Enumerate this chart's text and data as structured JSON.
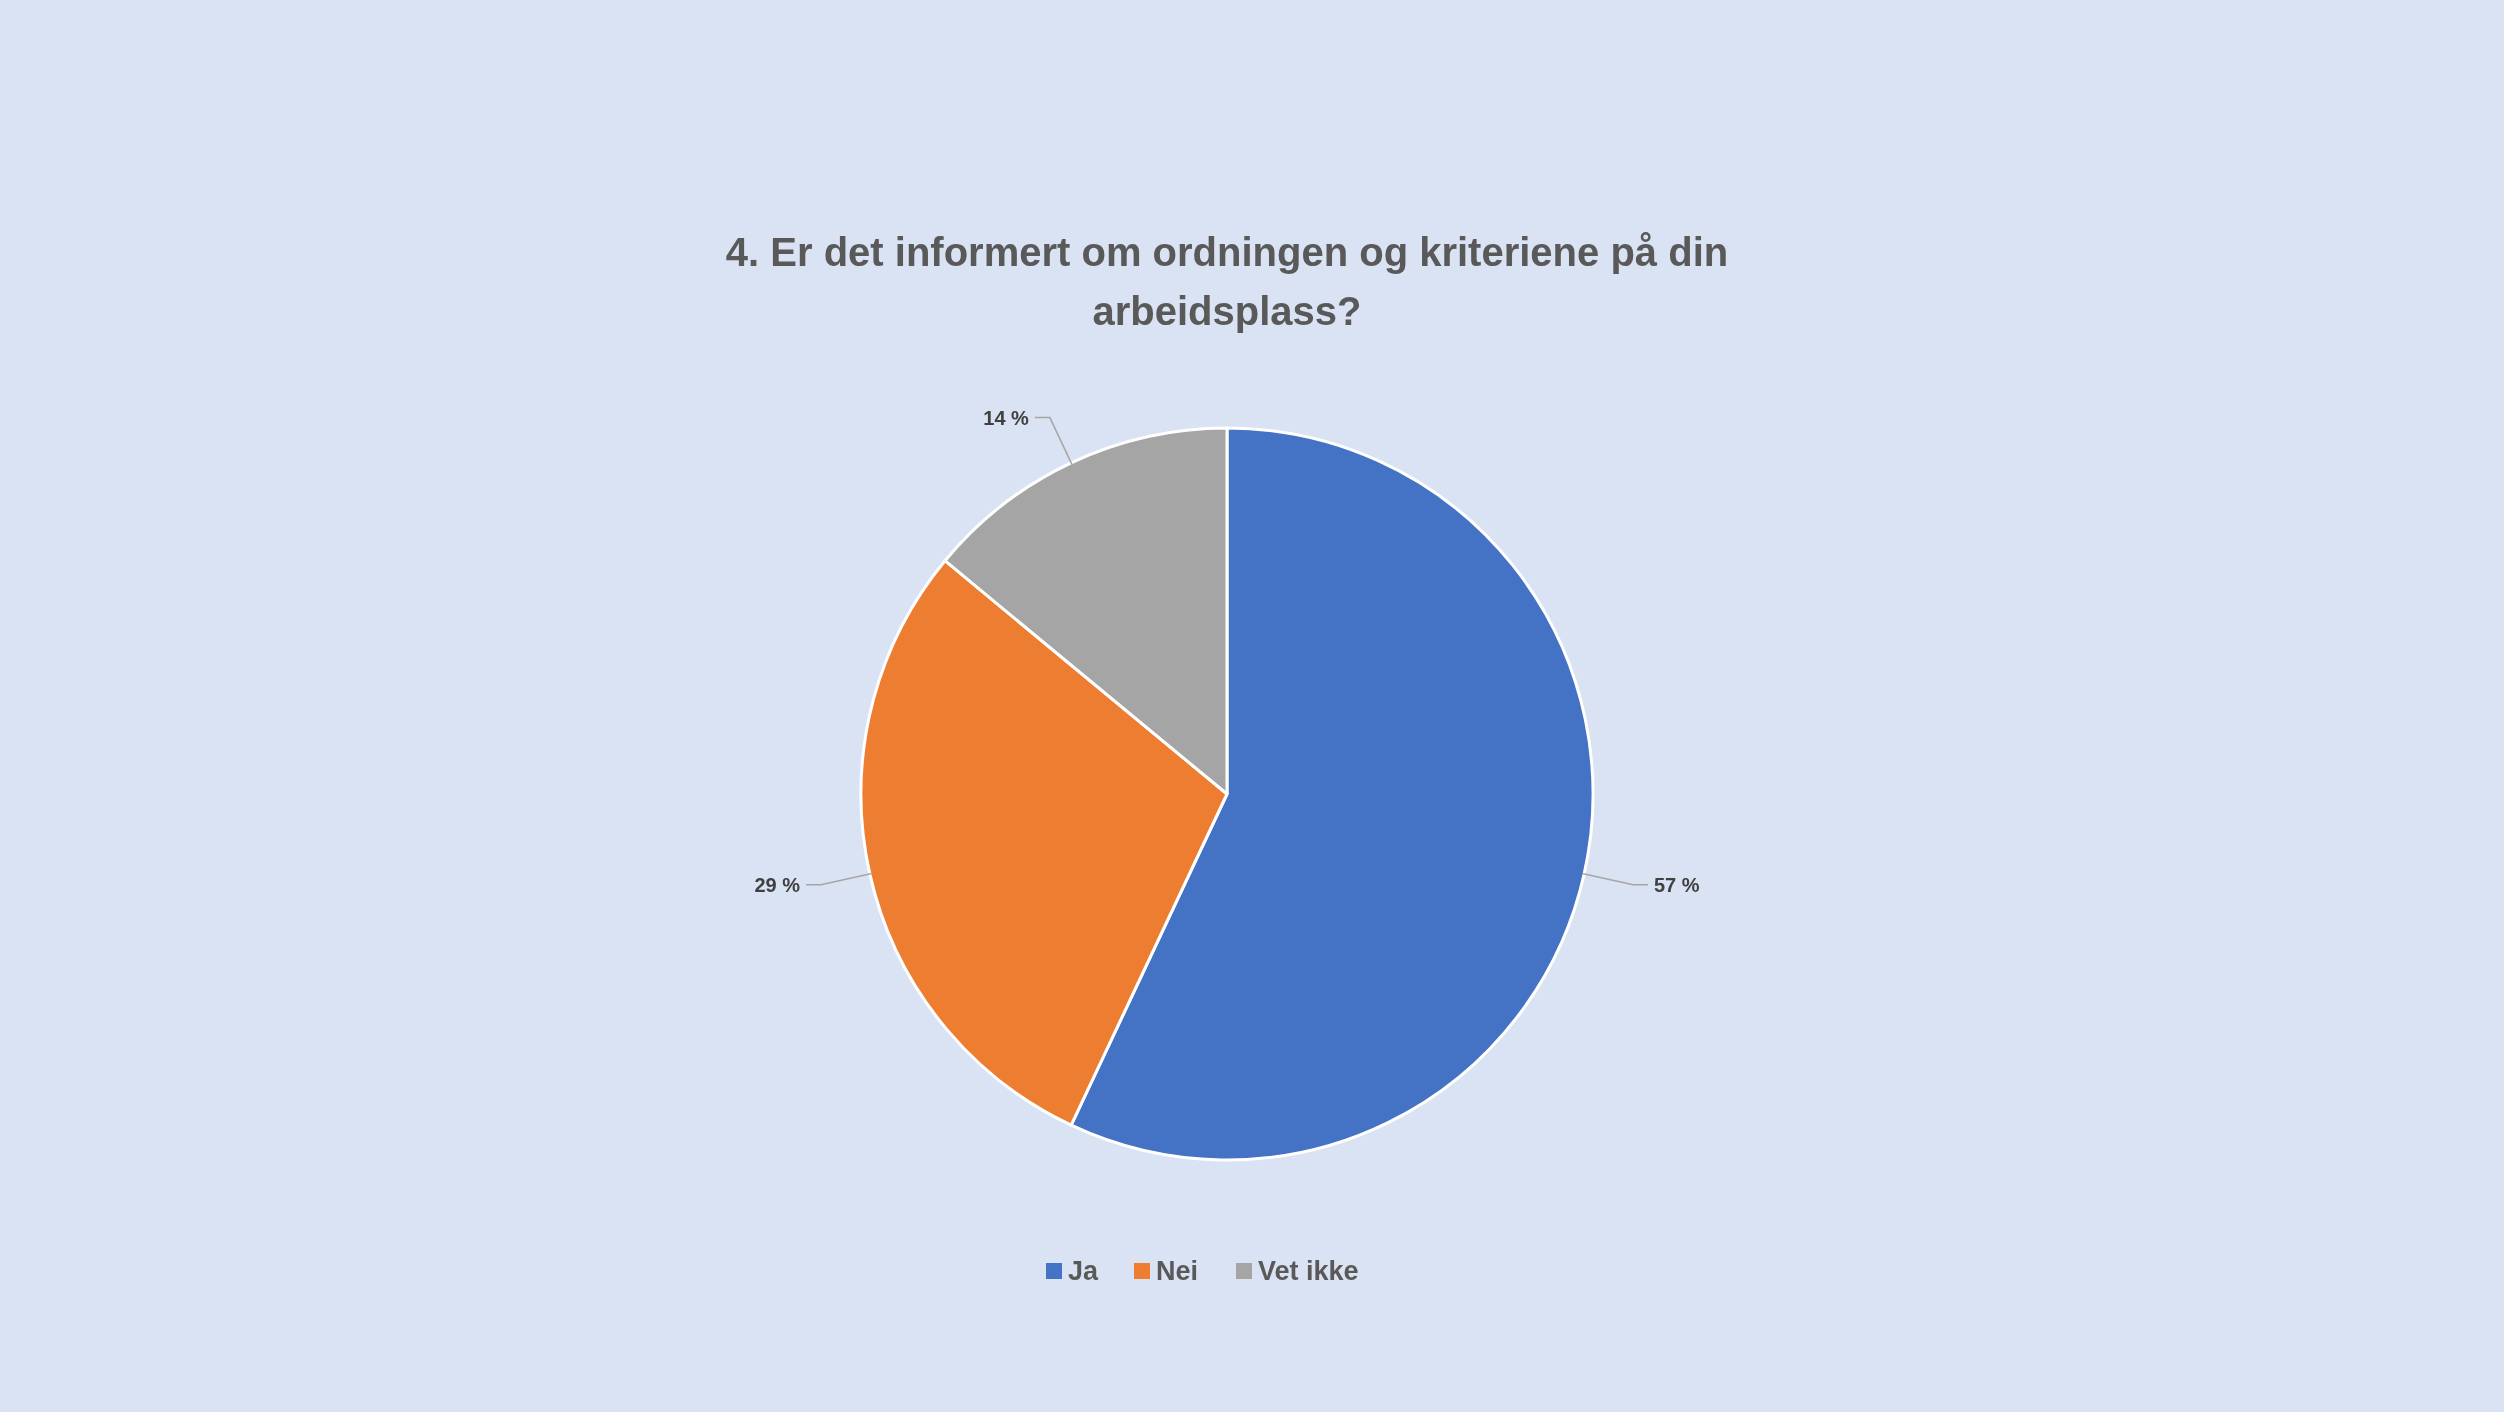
{
  "chart_data": {
    "type": "pie",
    "title": "4. Er det informert om ordningen og kriteriene på din arbeidsplass?",
    "categories": [
      "Ja",
      "Nei",
      "Vet ikke"
    ],
    "values": [
      57,
      29,
      14
    ],
    "colors": [
      "#4472c4",
      "#ed7d31",
      "#a5a5a5"
    ],
    "value_labels": [
      "57 %",
      "29 %",
      "14 %"
    ],
    "legend": "bottom"
  }
}
